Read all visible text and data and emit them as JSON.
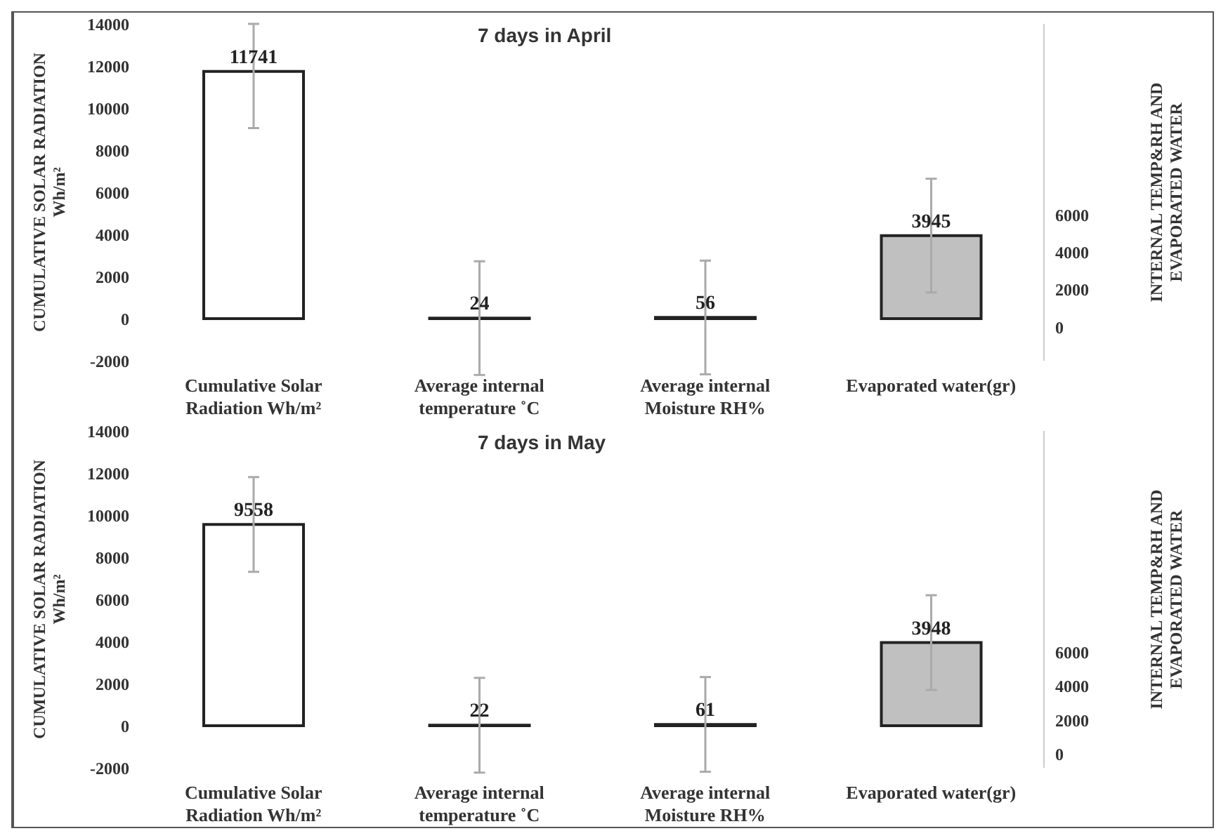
{
  "chart_data": [
    {
      "type": "bar",
      "title": "7 days in April",
      "ylabel": "CUMULATIVE SOLAR RADIATION Wh/m²",
      "y2label": "INTERNAL TEMP&RH AND EVAPORATED WATER",
      "categories": [
        "Cumulative Solar Radiation Wh/m²",
        "Average internal temperature ˚C",
        "Average internal Moisture RH%",
        "Evaporated water(gr)"
      ],
      "values": [
        11741,
        24,
        56,
        3945
      ],
      "errors": [
        [
          9050,
          14000
        ],
        2700,
        2700,
        2700
      ],
      "colors": [
        "#ffffff",
        "#ffffff",
        "#ffffff",
        "#c0c0c0"
      ],
      "data_labels": true,
      "ylim": [
        -2000,
        14000
      ],
      "yticks": [
        -2000,
        0,
        2000,
        4000,
        6000,
        8000,
        10000,
        12000,
        14000
      ],
      "y2lim": [
        -1800,
        16200
      ],
      "y2ticks": [
        0,
        2000,
        4000,
        6000
      ],
      "grid": false
    },
    {
      "type": "bar",
      "title": "7 days in May",
      "ylabel": "CUMULATIVE SOLAR RADIATION Wh/m²",
      "y2label": "INTERNAL TEMP&RH AND EVAPORATED WATER",
      "categories": [
        "Cumulative Solar Radiation Wh/m²",
        "Average internal temperature ˚C",
        "Average internal Moisture RH%",
        "Evaporated water(gr)"
      ],
      "values": [
        9558,
        22,
        61,
        3948
      ],
      "errors": [
        2250,
        2250,
        2250,
        2250
      ],
      "colors": [
        "#ffffff",
        "#ffffff",
        "#ffffff",
        "#c0c0c0"
      ],
      "data_labels": true,
      "ylim": [
        -2000,
        14000
      ],
      "yticks": [
        -2000,
        0,
        2000,
        4000,
        6000,
        8000,
        10000,
        12000,
        14000
      ],
      "y2lim": [
        -800,
        19000
      ],
      "y2ticks": [
        0,
        2000,
        4000,
        6000
      ],
      "grid": false
    }
  ]
}
